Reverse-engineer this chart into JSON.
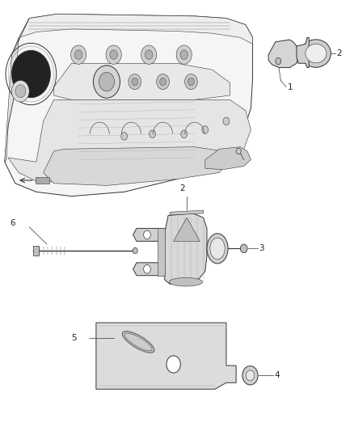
{
  "background_color": "#ffffff",
  "line_color": "#333333",
  "label_color": "#222222",
  "figsize": [
    4.38,
    5.33
  ],
  "dpi": 100,
  "font_size": 7.5,
  "lw_main": 0.7,
  "lw_thin": 0.4,
  "lw_thick": 1.0,
  "section1_yrange": [
    0.535,
    1.0
  ],
  "section2_yrange": [
    0.3,
    0.54
  ],
  "section3_yrange": [
    0.04,
    0.295
  ]
}
